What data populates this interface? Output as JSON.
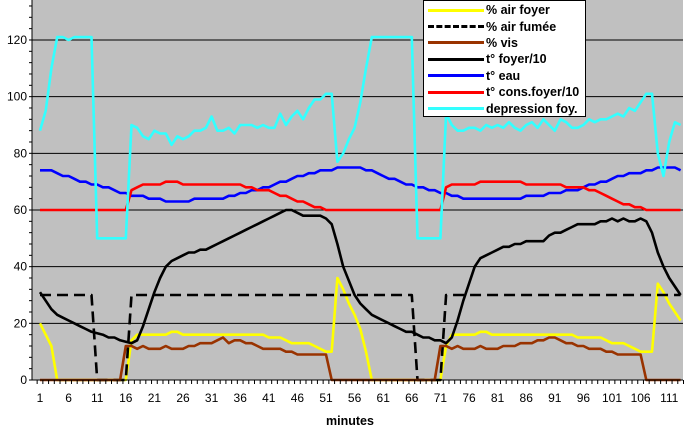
{
  "chart_data": {
    "type": "line",
    "title": "",
    "xlabel": "minutes",
    "ylabel": "",
    "ylim": [
      0,
      140
    ],
    "yticks": [
      0,
      20,
      40,
      60,
      80,
      100,
      120
    ],
    "grid": true,
    "legend_position": "top-right",
    "x_start": 1,
    "x_end": 113,
    "x_tick_labels": [
      "1",
      "6",
      "11",
      "16",
      "21",
      "26",
      "31",
      "36",
      "41",
      "46",
      "51",
      "56",
      "61",
      "66",
      "71",
      "76",
      "81",
      "86",
      "91",
      "96",
      "101",
      "106",
      "111"
    ],
    "colors": {
      "plot_bg": "#c0c0c0"
    },
    "series": [
      {
        "name": "% air foyer",
        "color": "#ffff00",
        "dash": false,
        "values": [
          20,
          16,
          12,
          0,
          0,
          0,
          0,
          0,
          0,
          0,
          0,
          0,
          0,
          0,
          0,
          0,
          14,
          16,
          16,
          16,
          16,
          16,
          16,
          17,
          17,
          16,
          16,
          16,
          16,
          16,
          16,
          16,
          16,
          16,
          16,
          16,
          16,
          16,
          16,
          16,
          15,
          15,
          15,
          14,
          13,
          13,
          13,
          13,
          12,
          11,
          10,
          10,
          36,
          32,
          27,
          23,
          18,
          10,
          0,
          0,
          0,
          0,
          0,
          0,
          0,
          0,
          0,
          0,
          0,
          0,
          0,
          12,
          16,
          16,
          16,
          16,
          16,
          17,
          17,
          16,
          16,
          16,
          16,
          16,
          16,
          16,
          16,
          16,
          16,
          16,
          16,
          16,
          16,
          16,
          15,
          15,
          15,
          15,
          15,
          14,
          13,
          13,
          13,
          12,
          11,
          10,
          10,
          10,
          34,
          31,
          27,
          24,
          21
        ]
      },
      {
        "name": "% air fumée",
        "color": "#000000",
        "dash": true,
        "values": [
          30,
          30,
          30,
          30,
          30,
          30,
          30,
          30,
          30,
          30,
          0,
          0,
          0,
          0,
          0,
          0,
          30,
          30,
          30,
          30,
          30,
          30,
          30,
          30,
          30,
          30,
          30,
          30,
          30,
          30,
          30,
          30,
          30,
          30,
          30,
          30,
          30,
          30,
          30,
          30,
          30,
          30,
          30,
          30,
          30,
          30,
          30,
          30,
          30,
          30,
          30,
          30,
          30,
          30,
          30,
          30,
          30,
          30,
          30,
          30,
          30,
          30,
          30,
          30,
          30,
          30,
          0,
          0,
          0,
          0,
          0,
          30,
          30,
          30,
          30,
          30,
          30,
          30,
          30,
          30,
          30,
          30,
          30,
          30,
          30,
          30,
          30,
          30,
          30,
          30,
          30,
          30,
          30,
          30,
          30,
          30,
          30,
          30,
          30,
          30,
          30,
          30,
          30,
          30,
          30,
          30,
          30,
          30,
          30,
          30,
          30,
          30,
          30
        ]
      },
      {
        "name": "% vis",
        "color": "#993300",
        "dash": false,
        "values": [
          0,
          0,
          0,
          0,
          0,
          0,
          0,
          0,
          0,
          0,
          0,
          0,
          0,
          0,
          0,
          12,
          12,
          11,
          12,
          11,
          11,
          11,
          12,
          11,
          11,
          11,
          12,
          12,
          13,
          13,
          13,
          14,
          15,
          13,
          14,
          14,
          13,
          13,
          12,
          11,
          11,
          11,
          11,
          10,
          10,
          9,
          9,
          9,
          9,
          9,
          9,
          0,
          0,
          0,
          0,
          0,
          0,
          0,
          0,
          0,
          0,
          0,
          0,
          0,
          0,
          0,
          0,
          0,
          0,
          0,
          12,
          12,
          11,
          12,
          11,
          11,
          11,
          12,
          11,
          11,
          11,
          12,
          12,
          12,
          13,
          13,
          13,
          14,
          14,
          15,
          15,
          14,
          13,
          13,
          12,
          12,
          11,
          11,
          11,
          10,
          10,
          9,
          9,
          9,
          9,
          9,
          0,
          0,
          0,
          0,
          0,
          0,
          0
        ]
      },
      {
        "name": "t° foyer/10",
        "color": "#000000",
        "dash": false,
        "values": [
          31,
          28,
          25,
          23,
          22,
          21,
          20,
          19,
          18,
          17,
          16.5,
          16,
          15,
          15,
          14,
          13.5,
          13,
          14,
          19,
          25,
          31,
          36,
          40,
          42,
          43,
          44,
          45,
          45,
          46,
          46,
          47,
          48,
          49,
          50,
          51,
          52,
          53,
          54,
          55,
          56,
          57,
          58,
          59,
          60,
          60,
          59,
          58,
          58,
          58,
          58,
          57,
          55,
          48,
          40,
          35,
          30,
          27,
          25,
          23,
          22,
          21,
          20,
          19,
          18,
          17,
          17,
          16,
          15,
          15,
          14,
          14,
          13,
          15,
          21,
          28,
          34,
          40,
          43,
          44,
          45,
          46,
          47,
          47,
          48,
          48,
          49,
          49,
          49,
          49,
          51,
          52,
          52,
          53,
          54,
          55,
          55,
          55,
          55,
          56,
          56,
          57,
          56,
          57,
          56,
          56,
          57,
          56,
          52,
          45,
          40,
          36,
          33,
          30
        ]
      },
      {
        "name": "t° eau",
        "color": "#0000ff",
        "dash": false,
        "values": [
          74,
          74,
          74,
          73,
          72,
          72,
          71,
          70,
          70,
          69,
          69,
          68,
          68,
          67,
          66,
          66,
          65,
          65,
          65,
          64,
          64,
          64,
          63,
          63,
          63,
          63,
          63,
          64,
          64,
          64,
          64,
          64,
          64,
          65,
          65,
          66,
          66,
          67,
          67,
          68,
          68,
          69,
          70,
          70,
          71,
          72,
          72,
          73,
          73,
          74,
          74,
          74,
          75,
          75,
          75,
          75,
          75,
          74,
          74,
          73,
          72,
          71,
          71,
          70,
          69,
          69,
          68,
          68,
          67,
          67,
          66,
          66,
          65,
          65,
          64,
          64,
          64,
          64,
          64,
          64,
          64,
          64,
          64,
          64,
          64,
          65,
          65,
          65,
          65,
          66,
          66,
          66,
          67,
          67,
          67,
          68,
          69,
          69,
          70,
          70,
          71,
          72,
          72,
          73,
          73,
          73,
          74,
          74,
          75,
          75,
          75,
          75,
          74
        ]
      },
      {
        "name": "t° cons.foyer/10",
        "color": "#ff0000",
        "dash": false,
        "values": [
          60,
          60,
          60,
          60,
          60,
          60,
          60,
          60,
          60,
          60,
          60,
          60,
          60,
          60,
          60,
          60,
          67,
          68,
          69,
          69,
          69,
          69,
          70,
          70,
          70,
          69,
          69,
          69,
          69,
          69,
          69,
          69,
          69,
          69,
          69,
          69,
          68,
          68,
          67,
          67,
          67,
          66,
          65,
          65,
          64,
          63,
          63,
          62,
          61,
          61,
          60,
          60,
          60,
          60,
          60,
          60,
          60,
          60,
          60,
          60,
          60,
          60,
          60,
          60,
          60,
          60,
          60,
          60,
          60,
          60,
          60,
          68,
          69,
          69,
          69,
          69,
          69,
          70,
          70,
          70,
          70,
          70,
          70,
          70,
          70,
          69,
          69,
          69,
          69,
          69,
          69,
          69,
          68,
          68,
          68,
          68,
          67,
          67,
          66,
          65,
          64,
          63,
          62,
          62,
          61,
          61,
          60,
          60,
          60,
          60,
          60,
          60,
          60
        ]
      },
      {
        "name": "depression foy.",
        "color": "#33ffff",
        "dash": false,
        "values": [
          88,
          95,
          110,
          121,
          121,
          120,
          121,
          121,
          121,
          121,
          50,
          50,
          50,
          50,
          50,
          50,
          90,
          89,
          86,
          85,
          88,
          87,
          87,
          83,
          86,
          85,
          86,
          88,
          88,
          89,
          93,
          88,
          88,
          89,
          87,
          90,
          90,
          90,
          89,
          90,
          89,
          89,
          94,
          90,
          93,
          95,
          92,
          96,
          99,
          99,
          101,
          101,
          77,
          80,
          85,
          89,
          98,
          110,
          121,
          121,
          121,
          121,
          121,
          121,
          121,
          121,
          50,
          50,
          50,
          50,
          50,
          94,
          90,
          88,
          88,
          89,
          89,
          88,
          90,
          89,
          90,
          89,
          91,
          89,
          88,
          90,
          91,
          89,
          92,
          90,
          88,
          92,
          91,
          89,
          89,
          90,
          92,
          91,
          92,
          92,
          93,
          94,
          93,
          96,
          95,
          98,
          101,
          101,
          80,
          72,
          84,
          91,
          90
        ]
      }
    ]
  }
}
